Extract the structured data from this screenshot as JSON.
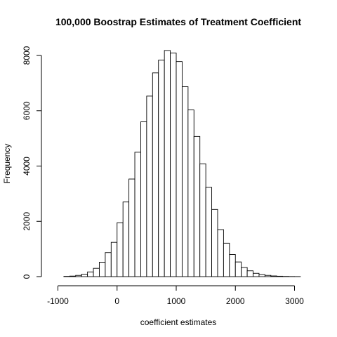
{
  "chart_data": {
    "type": "bar",
    "title": "100,000 Boostrap Estimates of Treatment Coefficient",
    "xlabel": "coefficient estimates",
    "ylabel": "Frequency",
    "xlim": [
      -1000,
      3200
    ],
    "ylim": [
      0,
      8200
    ],
    "x_ticks": [
      -1000,
      0,
      1000,
      2000,
      3000
    ],
    "y_ticks": [
      0,
      2000,
      4000,
      6000,
      8000
    ],
    "bin_width": 100,
    "bins": [
      {
        "x0": -1100,
        "x1": -1000,
        "value": 0
      },
      {
        "x0": -1000,
        "x1": -900,
        "value": 0
      },
      {
        "x0": -900,
        "x1": -800,
        "value": 10
      },
      {
        "x0": -800,
        "x1": -700,
        "value": 20
      },
      {
        "x0": -700,
        "x1": -600,
        "value": 45
      },
      {
        "x0": -600,
        "x1": -500,
        "value": 90
      },
      {
        "x0": -500,
        "x1": -400,
        "value": 170
      },
      {
        "x0": -400,
        "x1": -300,
        "value": 300
      },
      {
        "x0": -300,
        "x1": -200,
        "value": 520
      },
      {
        "x0": -200,
        "x1": -100,
        "value": 870
      },
      {
        "x0": -100,
        "x1": 0,
        "value": 1240
      },
      {
        "x0": 0,
        "x1": 100,
        "value": 1950
      },
      {
        "x0": 100,
        "x1": 200,
        "value": 2700
      },
      {
        "x0": 200,
        "x1": 300,
        "value": 3530
      },
      {
        "x0": 300,
        "x1": 400,
        "value": 4500
      },
      {
        "x0": 400,
        "x1": 500,
        "value": 5600
      },
      {
        "x0": 500,
        "x1": 600,
        "value": 6530
      },
      {
        "x0": 600,
        "x1": 700,
        "value": 7370
      },
      {
        "x0": 700,
        "x1": 800,
        "value": 7830
      },
      {
        "x0": 800,
        "x1": 900,
        "value": 8180
      },
      {
        "x0": 900,
        "x1": 1000,
        "value": 8090
      },
      {
        "x0": 1000,
        "x1": 1100,
        "value": 7780
      },
      {
        "x0": 1100,
        "x1": 1200,
        "value": 6870
      },
      {
        "x0": 1200,
        "x1": 1300,
        "value": 6030
      },
      {
        "x0": 1300,
        "x1": 1400,
        "value": 5070
      },
      {
        "x0": 1400,
        "x1": 1500,
        "value": 4080
      },
      {
        "x0": 1500,
        "x1": 1600,
        "value": 3230
      },
      {
        "x0": 1600,
        "x1": 1700,
        "value": 2430
      },
      {
        "x0": 1700,
        "x1": 1800,
        "value": 1700
      },
      {
        "x0": 1800,
        "x1": 1900,
        "value": 1210
      },
      {
        "x0": 1900,
        "x1": 2000,
        "value": 800
      },
      {
        "x0": 2000,
        "x1": 2100,
        "value": 530
      },
      {
        "x0": 2100,
        "x1": 2200,
        "value": 330
      },
      {
        "x0": 2200,
        "x1": 2300,
        "value": 210
      },
      {
        "x0": 2300,
        "x1": 2400,
        "value": 120
      },
      {
        "x0": 2400,
        "x1": 2500,
        "value": 75
      },
      {
        "x0": 2500,
        "x1": 2600,
        "value": 45
      },
      {
        "x0": 2600,
        "x1": 2700,
        "value": 25
      },
      {
        "x0": 2700,
        "x1": 2800,
        "value": 15
      },
      {
        "x0": 2800,
        "x1": 2900,
        "value": 8
      },
      {
        "x0": 2900,
        "x1": 3000,
        "value": 4
      },
      {
        "x0": 3000,
        "x1": 3100,
        "value": 2
      },
      {
        "x0": 3100,
        "x1": 3200,
        "value": 0
      }
    ],
    "colors": {
      "bar_fill": "#ffffff",
      "bar_stroke": "#000000"
    },
    "grid": false,
    "legend": "none"
  }
}
